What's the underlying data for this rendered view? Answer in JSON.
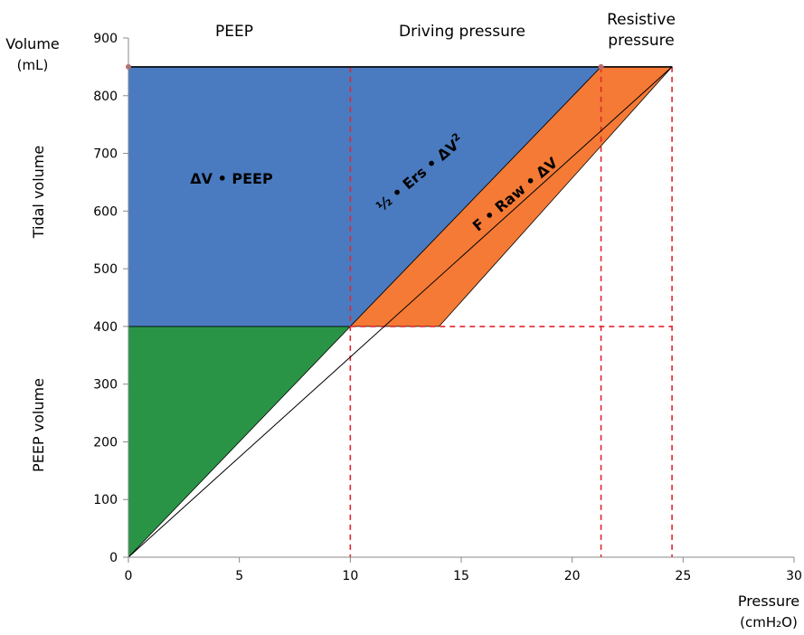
{
  "chart_data": {
    "type": "area",
    "x_axis": {
      "range": [
        0,
        30
      ],
      "ticks": [
        0,
        5,
        10,
        15,
        20,
        25,
        30
      ],
      "label": "Pressure",
      "unit": "(cmH₂O)"
    },
    "y_axis": {
      "range": [
        0,
        900
      ],
      "ticks": [
        0,
        100,
        200,
        300,
        400,
        500,
        600,
        700,
        800,
        900
      ],
      "label": "Volume",
      "unit": "(mL)"
    },
    "grid": false,
    "section_headers": {
      "peep": "PEEP",
      "driving": "Driving pressure",
      "resistive_line1": "Resistive",
      "resistive_line2": "pressure"
    },
    "side_labels": {
      "tidal_volume": "Tidal volume",
      "peep_volume": "PEEP volume"
    },
    "regions": [
      {
        "name": "peep-volume-region",
        "color": "#2a9446",
        "points": [
          [
            0,
            0
          ],
          [
            10,
            400
          ],
          [
            0,
            400
          ]
        ]
      },
      {
        "name": "peep-work-region",
        "label": "ΔV • PEEP",
        "color": "#4a7bc0",
        "points": [
          [
            0,
            400
          ],
          [
            10,
            400
          ],
          [
            21.3,
            850
          ],
          [
            0,
            850
          ]
        ]
      },
      {
        "name": "resistive-work-region",
        "label": "F • Raw • ΔV",
        "color": "#f47a35",
        "points": [
          [
            10,
            400
          ],
          [
            14,
            400
          ],
          [
            24.5,
            850
          ],
          [
            21.3,
            850
          ]
        ]
      }
    ],
    "driving_label": {
      "prefix": "½ • Ers • ΔV",
      "superscript": "2"
    },
    "top_line_y": 850,
    "dashed_guides": {
      "color": "#e0262e",
      "vertical_x": [
        10,
        21.3,
        24.5
      ],
      "horizontal_y": 400,
      "horizontal_from_x": 10,
      "horizontal_to_x": 24.5
    },
    "colors": {
      "outline": "#000000",
      "diagonal": "#000000"
    }
  }
}
